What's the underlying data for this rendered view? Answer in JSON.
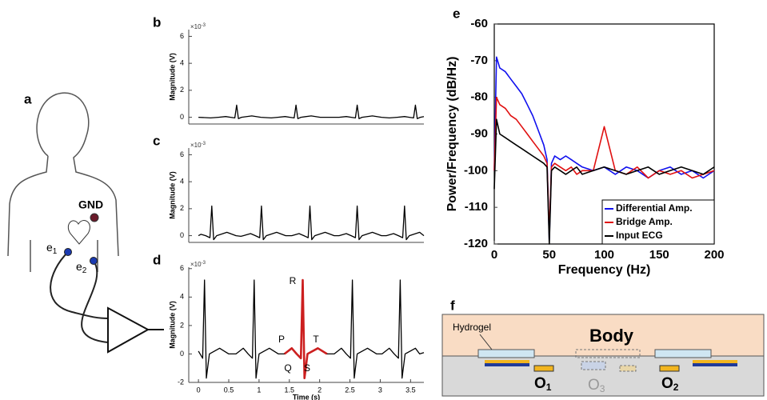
{
  "panels": {
    "a": "a",
    "f": "f"
  },
  "diagram_a": {
    "ground": "GND",
    "electrodes": [
      {
        "base": "e",
        "sub": "1"
      },
      {
        "base": "e",
        "sub": "2"
      }
    ]
  },
  "diagram_f": {
    "hydrogel": "Hydrogel",
    "body": "Body",
    "outputs": [
      {
        "base": "O",
        "sub": "1"
      },
      {
        "base": "O",
        "sub": "3"
      },
      {
        "base": "O",
        "sub": "2"
      }
    ]
  },
  "chart_data": [
    {
      "type": "line",
      "panel": "b",
      "y_label": "Magnitude (V)",
      "y_multiplier": {
        "base": "×10",
        "sup": "-3"
      },
      "xlim": [
        -0.16,
        3.72
      ],
      "ylim": [
        -0.5,
        6.5
      ],
      "yticks": [
        0,
        2,
        4,
        6
      ],
      "x": [
        0,
        0.2,
        0.33,
        0.45,
        0.53,
        0.6,
        0.63,
        0.66,
        0.71,
        0.88,
        1.03,
        1.2,
        1.31,
        1.43,
        1.51,
        1.58,
        1.61,
        1.64,
        1.69,
        1.86,
        2.01,
        2.15,
        2.32,
        2.44,
        2.52,
        2.59,
        2.62,
        2.65,
        2.7,
        2.87,
        3.02,
        3.15,
        3.28,
        3.4,
        3.48,
        3.55,
        3.58,
        3.61,
        3.66,
        3.72
      ],
      "series": [
        {
          "color": "#000000",
          "values": [
            0,
            -0.05,
            0,
            0.05,
            0,
            -0.05,
            0.9,
            -0.1,
            0,
            0.1,
            0,
            -0.05,
            0,
            0.05,
            0,
            -0.05,
            0.9,
            -0.1,
            0,
            0.1,
            0,
            0,
            0,
            0.05,
            0,
            -0.05,
            0.9,
            -0.1,
            0,
            0.1,
            0,
            -0.05,
            0,
            0.05,
            0,
            -0.05,
            0.9,
            -0.1,
            0,
            0.05
          ]
        }
      ]
    },
    {
      "type": "line",
      "panel": "c",
      "y_label": "Magnitude (V)",
      "y_multiplier": {
        "base": "×10",
        "sup": "-3"
      },
      "xlim": [
        -0.16,
        3.72
      ],
      "ylim": [
        -0.5,
        6.5
      ],
      "yticks": [
        0,
        2,
        4,
        6
      ],
      "x": [
        0,
        0.04,
        0.12,
        0.19,
        0.22,
        0.25,
        0.3,
        0.47,
        0.62,
        0.7,
        0.74,
        0.86,
        0.94,
        1.01,
        1.04,
        1.07,
        1.12,
        1.29,
        1.44,
        1.54,
        1.66,
        1.74,
        1.81,
        1.84,
        1.87,
        1.92,
        2.09,
        2.24,
        2.32,
        2.44,
        2.52,
        2.59,
        2.62,
        2.65,
        2.7,
        2.87,
        3.02,
        3.1,
        3.22,
        3.3,
        3.37,
        3.4,
        3.43,
        3.48,
        3.65,
        3.72
      ],
      "series": [
        {
          "color": "#000000",
          "values": [
            0,
            0.1,
            0,
            -0.15,
            2.2,
            -0.3,
            0,
            0.25,
            0,
            -0.05,
            0,
            0.15,
            0,
            -0.15,
            2.2,
            -0.3,
            0,
            0.25,
            0,
            0,
            0.15,
            0,
            -0.15,
            2.2,
            -0.3,
            0,
            0.25,
            0,
            0,
            0.15,
            0,
            -0.15,
            2.2,
            -0.3,
            0,
            0.25,
            0,
            0,
            0.15,
            0,
            -0.15,
            2.2,
            -0.3,
            0,
            0.25,
            0
          ]
        }
      ]
    },
    {
      "type": "line",
      "panel": "d",
      "y_label": "Magnitude (V)",
      "y_multiplier": {
        "base": "×10",
        "sup": "-3"
      },
      "x_label": "Time (s)",
      "xlim": [
        -0.16,
        3.72
      ],
      "ylim": [
        -2,
        6.1
      ],
      "yticks": [
        -2,
        0,
        2,
        4,
        6
      ],
      "xticks": [
        0,
        0.5,
        1,
        1.5,
        2,
        2.5,
        3,
        3.5
      ],
      "annotations": [
        "P",
        "R",
        "T",
        "Q",
        "S"
      ],
      "x": [
        0,
        0.07,
        0.1,
        0.13,
        0.18,
        0.35,
        0.5,
        0.62,
        0.74,
        0.82,
        0.89,
        0.92,
        0.95,
        1.0,
        1.17,
        1.32,
        1.42,
        1.54,
        1.62,
        1.69,
        1.72,
        1.75,
        1.8,
        1.97,
        2.12,
        2.24,
        2.36,
        2.44,
        2.51,
        2.54,
        2.57,
        2.62,
        2.79,
        2.94,
        3.03,
        3.15,
        3.23,
        3.3,
        3.33,
        3.36,
        3.41,
        3.58,
        3.65,
        3.72
      ],
      "series": [
        {
          "color": "#000000",
          "values": [
            0.2,
            -0.3,
            5.2,
            -1.7,
            0,
            0.4,
            0,
            0,
            0.4,
            0,
            -0.3,
            5.2,
            -1.7,
            0,
            0.4,
            0,
            0,
            0.4,
            0,
            -0.3,
            5.2,
            -1.7,
            0,
            0.4,
            0,
            0,
            0.4,
            0,
            -0.3,
            5.2,
            -1.7,
            0,
            0.4,
            0,
            0,
            0.4,
            0,
            -0.3,
            5.2,
            -1.7,
            0,
            0.4,
            0,
            0.1
          ]
        },
        {
          "color": "#cc1f1f",
          "x": [
            1.42,
            1.54,
            1.62,
            1.69,
            1.72,
            1.75,
            1.8,
            1.97,
            2.12
          ],
          "values": [
            0,
            0.4,
            0,
            -0.3,
            5.2,
            -1.7,
            0,
            0.4,
            0
          ]
        }
      ]
    },
    {
      "type": "line",
      "panel": "e",
      "y_label": "Power/Frequency  (dB/Hz)",
      "x_label": "Frequency (Hz)",
      "xlim": [
        0,
        200
      ],
      "ylim": [
        -120,
        -60
      ],
      "xticks": [
        0,
        50,
        100,
        150,
        200
      ],
      "yticks": [
        -120,
        -110,
        -100,
        -90,
        -80,
        -70,
        -60
      ],
      "legend": "lower right",
      "frame": true,
      "x": [
        0,
        2,
        5,
        10,
        15,
        20,
        25,
        30,
        35,
        40,
        45,
        48,
        50,
        52,
        55,
        60,
        65,
        70,
        75,
        80,
        90,
        100,
        110,
        120,
        130,
        140,
        150,
        160,
        170,
        180,
        190,
        200
      ],
      "series": [
        {
          "name": "Differential Amp.",
          "color": "#1010ee",
          "values": [
            -100,
            -69,
            -72,
            -73,
            -75,
            -77,
            -79,
            -82,
            -85,
            -89,
            -93,
            -97,
            -119,
            -98,
            -96,
            -97,
            -96,
            -97,
            -98,
            -99,
            -100,
            -99,
            -101,
            -99,
            -100,
            -102,
            -100,
            -99,
            -101,
            -100,
            -102,
            -100
          ]
        },
        {
          "name": "Bridge Amp.",
          "color": "#e01010",
          "values": [
            -100,
            -80,
            -82,
            -83,
            -85,
            -86,
            -88,
            -90,
            -92,
            -94,
            -96,
            -98,
            -117,
            -99,
            -98,
            -99,
            -100,
            -99,
            -101,
            -100,
            -100,
            -88,
            -100,
            -101,
            -99,
            -102,
            -100,
            -101,
            -100,
            -102,
            -101,
            -100
          ]
        },
        {
          "name": "Input ECG",
          "color": "#000000",
          "values": [
            -105,
            -86,
            -90,
            -91,
            -92,
            -93,
            -94,
            -95,
            -96,
            -97,
            -98,
            -99,
            -120,
            -100,
            -99,
            -100,
            -101,
            -100,
            -99,
            -101,
            -100,
            -99,
            -100,
            -101,
            -100,
            -99,
            -101,
            -100,
            -99,
            -100,
            -101,
            -99
          ]
        }
      ]
    }
  ]
}
